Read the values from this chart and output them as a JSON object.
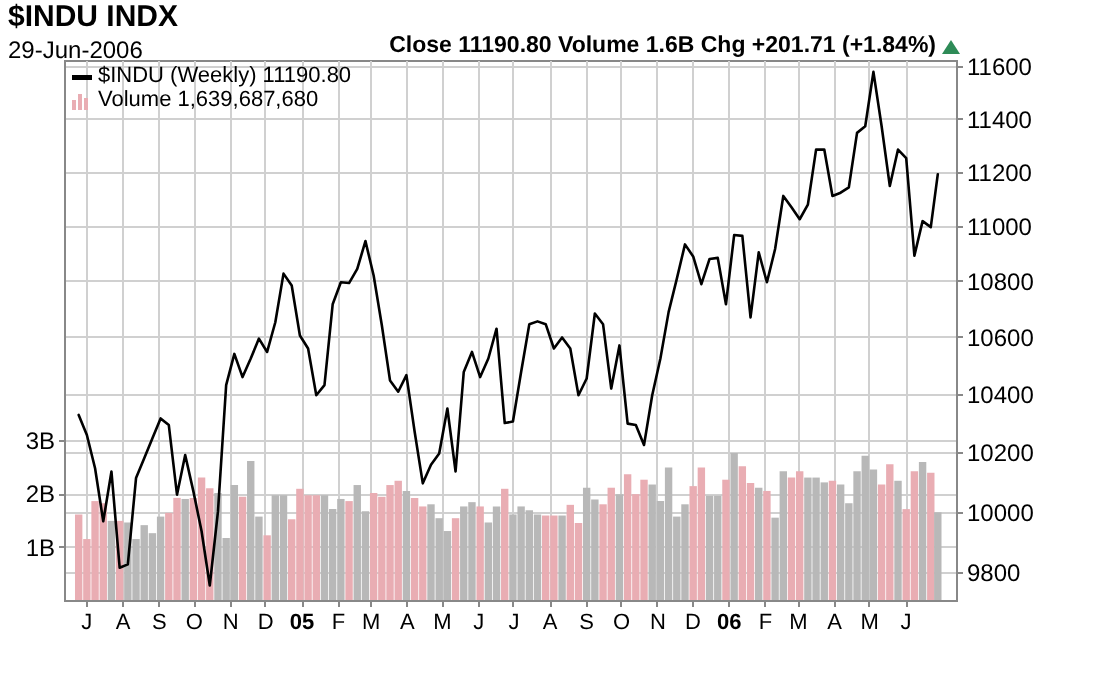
{
  "chart_data": {
    "type": "bar",
    "title": "$INDU INDX",
    "subtitle": "29-Jun-2006",
    "annotations": [
      "Close 11190.80  Volume 1.6B  Chg +201.71 (+1.84%)"
    ],
    "x": [
      "2004-06-25",
      "2004-07-02",
      "2004-07-09",
      "2004-07-16",
      "2004-07-23",
      "2004-07-30",
      "2004-08-06",
      "2004-08-13",
      "2004-08-20",
      "2004-08-27",
      "2004-09-03",
      "2004-09-10",
      "2004-09-17",
      "2004-09-24",
      "2004-10-01",
      "2004-10-08",
      "2004-10-15",
      "2004-10-22",
      "2004-10-29",
      "2004-11-05",
      "2004-11-12",
      "2004-11-19",
      "2004-11-26",
      "2004-12-03",
      "2004-12-10",
      "2004-12-17",
      "2004-12-24",
      "2004-12-31",
      "2005-01-07",
      "2005-01-14",
      "2005-01-21",
      "2005-01-28",
      "2005-02-04",
      "2005-02-11",
      "2005-02-18",
      "2005-02-25",
      "2005-03-04",
      "2005-03-11",
      "2005-03-18",
      "2005-03-25",
      "2005-04-01",
      "2005-04-08",
      "2005-04-15",
      "2005-04-22",
      "2005-04-29",
      "2005-05-06",
      "2005-05-13",
      "2005-05-20",
      "2005-05-27",
      "2005-06-03",
      "2005-06-10",
      "2005-06-17",
      "2005-06-24",
      "2005-07-01",
      "2005-07-08",
      "2005-07-15",
      "2005-07-22",
      "2005-07-29",
      "2005-08-05",
      "2005-08-12",
      "2005-08-19",
      "2005-08-26",
      "2005-09-02",
      "2005-09-09",
      "2005-09-16",
      "2005-09-23",
      "2005-09-30",
      "2005-10-07",
      "2005-10-14",
      "2005-10-21",
      "2005-10-28",
      "2005-11-04",
      "2005-11-11",
      "2005-11-18",
      "2005-11-25",
      "2005-12-02",
      "2005-12-09",
      "2005-12-16",
      "2005-12-23",
      "2005-12-30",
      "2006-01-06",
      "2006-01-13",
      "2006-01-20",
      "2006-01-27",
      "2006-02-03",
      "2006-02-10",
      "2006-02-17",
      "2006-02-24",
      "2006-03-03",
      "2006-03-10",
      "2006-03-17",
      "2006-03-24",
      "2006-03-31",
      "2006-04-07",
      "2006-04-14",
      "2006-04-21",
      "2006-04-28",
      "2006-05-05",
      "2006-05-12",
      "2006-05-19",
      "2006-05-26",
      "2006-06-02",
      "2006-06-09",
      "2006-06-16",
      "2006-06-23",
      "2006-06-29"
    ],
    "xlim": [
      "2004-06-21",
      "2006-07-06"
    ],
    "xticks": [
      {
        "value": "2004-07-01",
        "label": "J"
      },
      {
        "value": "2004-08-01",
        "label": "A"
      },
      {
        "value": "2004-09-01",
        "label": "S"
      },
      {
        "value": "2004-10-01",
        "label": "O"
      },
      {
        "value": "2004-11-01",
        "label": "N"
      },
      {
        "value": "2004-12-01",
        "label": "D"
      },
      {
        "value": "2005-01-01",
        "label": "05"
      },
      {
        "value": "2005-02-01",
        "label": "F"
      },
      {
        "value": "2005-03-01",
        "label": "M"
      },
      {
        "value": "2005-04-01",
        "label": "A"
      },
      {
        "value": "2005-05-01",
        "label": "M"
      },
      {
        "value": "2005-06-01",
        "label": "J"
      },
      {
        "value": "2005-07-01",
        "label": "J"
      },
      {
        "value": "2005-08-01",
        "label": "A"
      },
      {
        "value": "2005-09-01",
        "label": "S"
      },
      {
        "value": "2005-10-01",
        "label": "O"
      },
      {
        "value": "2005-11-01",
        "label": "N"
      },
      {
        "value": "2005-12-01",
        "label": "D"
      },
      {
        "value": "2006-01-01",
        "label": "06"
      },
      {
        "value": "2006-02-01",
        "label": "F"
      },
      {
        "value": "2006-03-01",
        "label": "M"
      },
      {
        "value": "2006-04-01",
        "label": "A"
      },
      {
        "value": "2006-05-01",
        "label": "M"
      },
      {
        "value": "2006-06-01",
        "label": "J"
      }
    ],
    "ylim": [
      0,
      10.1
    ],
    "yticks": [
      {
        "value": 1,
        "label": "1B"
      },
      {
        "value": 2,
        "label": "2B"
      },
      {
        "value": 3,
        "label": "3B"
      }
    ],
    "y2lim": [
      9710,
      11625
    ],
    "y2ticks": [
      9800,
      10000,
      10200,
      10400,
      10600,
      10800,
      11000,
      11200,
      11400,
      11600
    ],
    "log": "y2",
    "grid": true,
    "legend": "top left",
    "series": [
      {
        "name": "Volume 1,639,687,680",
        "values": [
          1.6,
          1.14,
          1.85,
          1.81,
          1.48,
          1.48,
          1.45,
          1.14,
          1.4,
          1.25,
          1.56,
          1.63,
          1.91,
          1.89,
          1.91,
          2.29,
          2.09,
          2.0,
          1.16,
          2.15,
          1.93,
          2.6,
          1.56,
          1.21,
          1.96,
          1.96,
          1.51,
          2.08,
          1.96,
          1.96,
          1.96,
          1.7,
          1.89,
          1.85,
          2.15,
          1.66,
          2.0,
          1.93,
          2.15,
          2.23,
          2.04,
          1.91,
          1.75,
          1.79,
          1.53,
          1.29,
          1.53,
          1.75,
          1.83,
          1.75,
          1.45,
          1.75,
          2.08,
          1.6,
          1.75,
          1.68,
          1.6,
          1.58,
          1.58,
          1.58,
          1.78,
          1.44,
          2.1,
          1.88,
          1.79,
          2.1,
          1.98,
          2.35,
          1.98,
          2.25,
          2.16,
          1.85,
          2.48,
          1.56,
          1.79,
          2.13,
          2.48,
          1.95,
          1.95,
          2.25,
          2.75,
          2.5,
          2.19,
          2.1,
          2.04,
          1.54,
          2.41,
          2.29,
          2.41,
          2.29,
          2.29,
          2.2,
          2.23,
          2.16,
          1.81,
          2.41,
          2.7,
          2.44,
          2.16,
          2.54,
          2.23,
          1.7,
          2.41,
          2.58,
          2.38,
          1.64
        ],
        "colors": [
          "#e9adb3",
          "#e9adb3",
          "#e9adb3",
          "#e9adb3",
          "#b8b8b8",
          "#e9adb3",
          "#b8b8b8",
          "#b8b8b8",
          "#b8b8b8",
          "#b8b8b8",
          "#b8b8b8",
          "#e9adb3",
          "#e9adb3",
          "#b8b8b8",
          "#e9adb3",
          "#e9adb3",
          "#e9adb3",
          "#b8b8b8",
          "#b8b8b8",
          "#b8b8b8",
          "#e9adb3",
          "#b8b8b8",
          "#b8b8b8",
          "#e9adb3",
          "#b8b8b8",
          "#b8b8b8",
          "#e9adb3",
          "#e9adb3",
          "#e9adb3",
          "#e9adb3",
          "#b8b8b8",
          "#b8b8b8",
          "#b8b8b8",
          "#e9adb3",
          "#b8b8b8",
          "#b8b8b8",
          "#e9adb3",
          "#e9adb3",
          "#e9adb3",
          "#e9adb3",
          "#b8b8b8",
          "#e9adb3",
          "#e9adb3",
          "#b8b8b8",
          "#b8b8b8",
          "#b8b8b8",
          "#e9adb3",
          "#b8b8b8",
          "#b8b8b8",
          "#e9adb3",
          "#b8b8b8",
          "#b8b8b8",
          "#e9adb3",
          "#b8b8b8",
          "#b8b8b8",
          "#b8b8b8",
          "#b8b8b8",
          "#e9adb3",
          "#e9adb3",
          "#b8b8b8",
          "#e9adb3",
          "#e9adb3",
          "#b8b8b8",
          "#b8b8b8",
          "#e9adb3",
          "#e9adb3",
          "#b8b8b8",
          "#e9adb3",
          "#e9adb3",
          "#e9adb3",
          "#b8b8b8",
          "#b8b8b8",
          "#b8b8b8",
          "#b8b8b8",
          "#b8b8b8",
          "#e9adb3",
          "#e9adb3",
          "#b8b8b8",
          "#b8b8b8",
          "#e9adb3",
          "#b8b8b8",
          "#e9adb3",
          "#e9adb3",
          "#b8b8b8",
          "#e9adb3",
          "#b8b8b8",
          "#b8b8b8",
          "#e9adb3",
          "#e9adb3",
          "#b8b8b8",
          "#b8b8b8",
          "#b8b8b8",
          "#e9adb3",
          "#b8b8b8",
          "#b8b8b8",
          "#b8b8b8",
          "#b8b8b8",
          "#b8b8b8",
          "#e9adb3",
          "#e9adb3",
          "#b8b8b8",
          "#e9adb3",
          "#e9adb3",
          "#b8b8b8",
          "#e9adb3",
          "#b8b8b8"
        ]
      },
      {
        "type": "line",
        "name": "$INDU (Weekly) 11190.80",
        "axis": "y2",
        "color": "#000000",
        "values": [
          10328,
          10259,
          10146,
          9968,
          10135,
          9815,
          9826,
          10113,
          10180,
          10248,
          10316,
          10293,
          10057,
          10191,
          10068,
          9935,
          9757,
          10001,
          10431,
          10540,
          10459,
          10524,
          10594,
          10547,
          10652,
          10826,
          10783,
          10605,
          10559,
          10396,
          10431,
          10716,
          10795,
          10792,
          10843,
          10944,
          10819,
          10641,
          10447,
          10408,
          10466,
          10271,
          10095,
          10158,
          10196,
          10350,
          10135,
          10477,
          10547,
          10459,
          10524,
          10629,
          10300,
          10305,
          10477,
          10645,
          10655,
          10645,
          10559,
          10598,
          10559,
          10396,
          10454,
          10683,
          10645,
          10419,
          10570,
          10298,
          10293,
          10225,
          10396,
          10524,
          10688,
          10807,
          10932,
          10888,
          10788,
          10879,
          10883,
          10716,
          10966,
          10963,
          10669,
          10903,
          10795,
          10915,
          11110,
          11068,
          11024,
          11078,
          11283,
          11283,
          11110,
          11122,
          11142,
          11346,
          11371,
          11579,
          11371,
          11147,
          11283,
          11251,
          10891,
          11017,
          10995,
          11190.8
        ]
      }
    ]
  }
}
